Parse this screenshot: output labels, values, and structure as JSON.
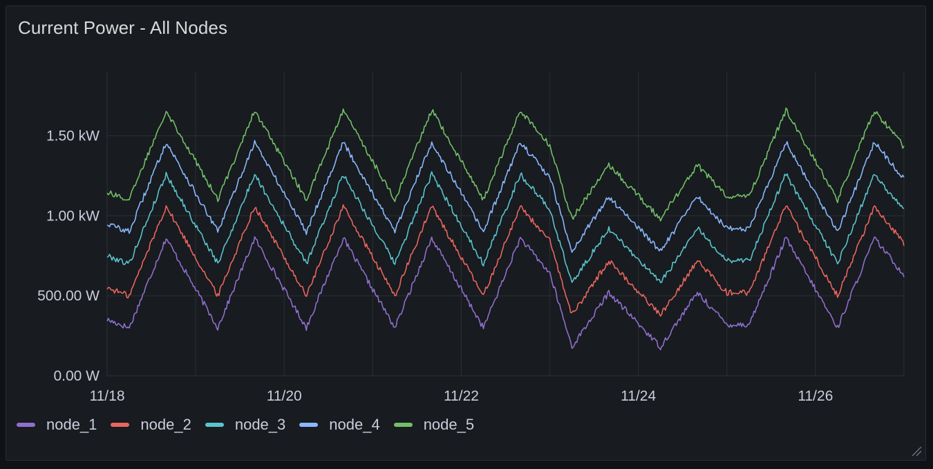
{
  "panel": {
    "title": "Current Power - All Nodes"
  },
  "colors": {
    "background": "#111217",
    "panel": "#181b1f",
    "grid": "#2c2f35",
    "text": "#ccccdc"
  },
  "chart_data": {
    "type": "line",
    "title": "Current Power - All Nodes",
    "xlabel": "",
    "ylabel": "",
    "x_start": "11/18 00:00",
    "x_end": "11/27 00:00",
    "xlim": [
      "11/18",
      "11/27"
    ],
    "ylim": [
      0,
      1900
    ],
    "y_unit": "W",
    "x_ticks": [
      "11/18",
      "11/20",
      "11/22",
      "11/24",
      "11/26"
    ],
    "y_ticks": [
      {
        "value": 0,
        "label": "0.00 W"
      },
      {
        "value": 500,
        "label": "500.00 W"
      },
      {
        "value": 1000,
        "label": "1.00 kW"
      },
      {
        "value": 1500,
        "label": "1.50 kW"
      }
    ],
    "grid": true,
    "legend_position": "bottom-left",
    "x": [
      "11/18 00:00",
      "11/18 06:00",
      "11/18 16:00",
      "11/19 06:00",
      "11/19 16:00",
      "11/20 06:00",
      "11/20 16:00",
      "11/21 06:00",
      "11/21 16:00",
      "11/22 06:00",
      "11/22 16:00",
      "11/23 00:00",
      "11/23 06:00",
      "11/23 16:00",
      "11/24 06:00",
      "11/24 16:00",
      "11/25 00:00",
      "11/25 06:00",
      "11/25 16:00",
      "11/26 06:00",
      "11/26 16:00",
      "11/27 00:00"
    ],
    "series": [
      {
        "name": "node_1",
        "color": "#8f6fce",
        "values": [
          350,
          300,
          860,
          300,
          860,
          300,
          860,
          300,
          860,
          300,
          860,
          640,
          180,
          520,
          180,
          520,
          320,
          320,
          860,
          300,
          860,
          630
        ]
      },
      {
        "name": "node_2",
        "color": "#e9665f",
        "values": [
          550,
          500,
          1060,
          500,
          1060,
          500,
          1060,
          500,
          1060,
          500,
          1060,
          840,
          380,
          720,
          380,
          720,
          520,
          520,
          1060,
          500,
          1060,
          830
        ]
      },
      {
        "name": "node_3",
        "color": "#5ac4cf",
        "values": [
          750,
          700,
          1260,
          700,
          1260,
          700,
          1260,
          700,
          1260,
          700,
          1260,
          1040,
          580,
          920,
          580,
          920,
          720,
          720,
          1260,
          700,
          1260,
          1030
        ]
      },
      {
        "name": "node_4",
        "color": "#8ab8ff",
        "values": [
          950,
          900,
          1460,
          900,
          1460,
          900,
          1460,
          900,
          1460,
          900,
          1460,
          1240,
          780,
          1120,
          780,
          1120,
          920,
          920,
          1460,
          900,
          1460,
          1230
        ]
      },
      {
        "name": "node_5",
        "color": "#73bf69",
        "values": [
          1150,
          1100,
          1660,
          1100,
          1660,
          1100,
          1660,
          1100,
          1660,
          1100,
          1660,
          1440,
          980,
          1320,
          980,
          1320,
          1120,
          1120,
          1660,
          1100,
          1660,
          1430
        ]
      }
    ]
  }
}
